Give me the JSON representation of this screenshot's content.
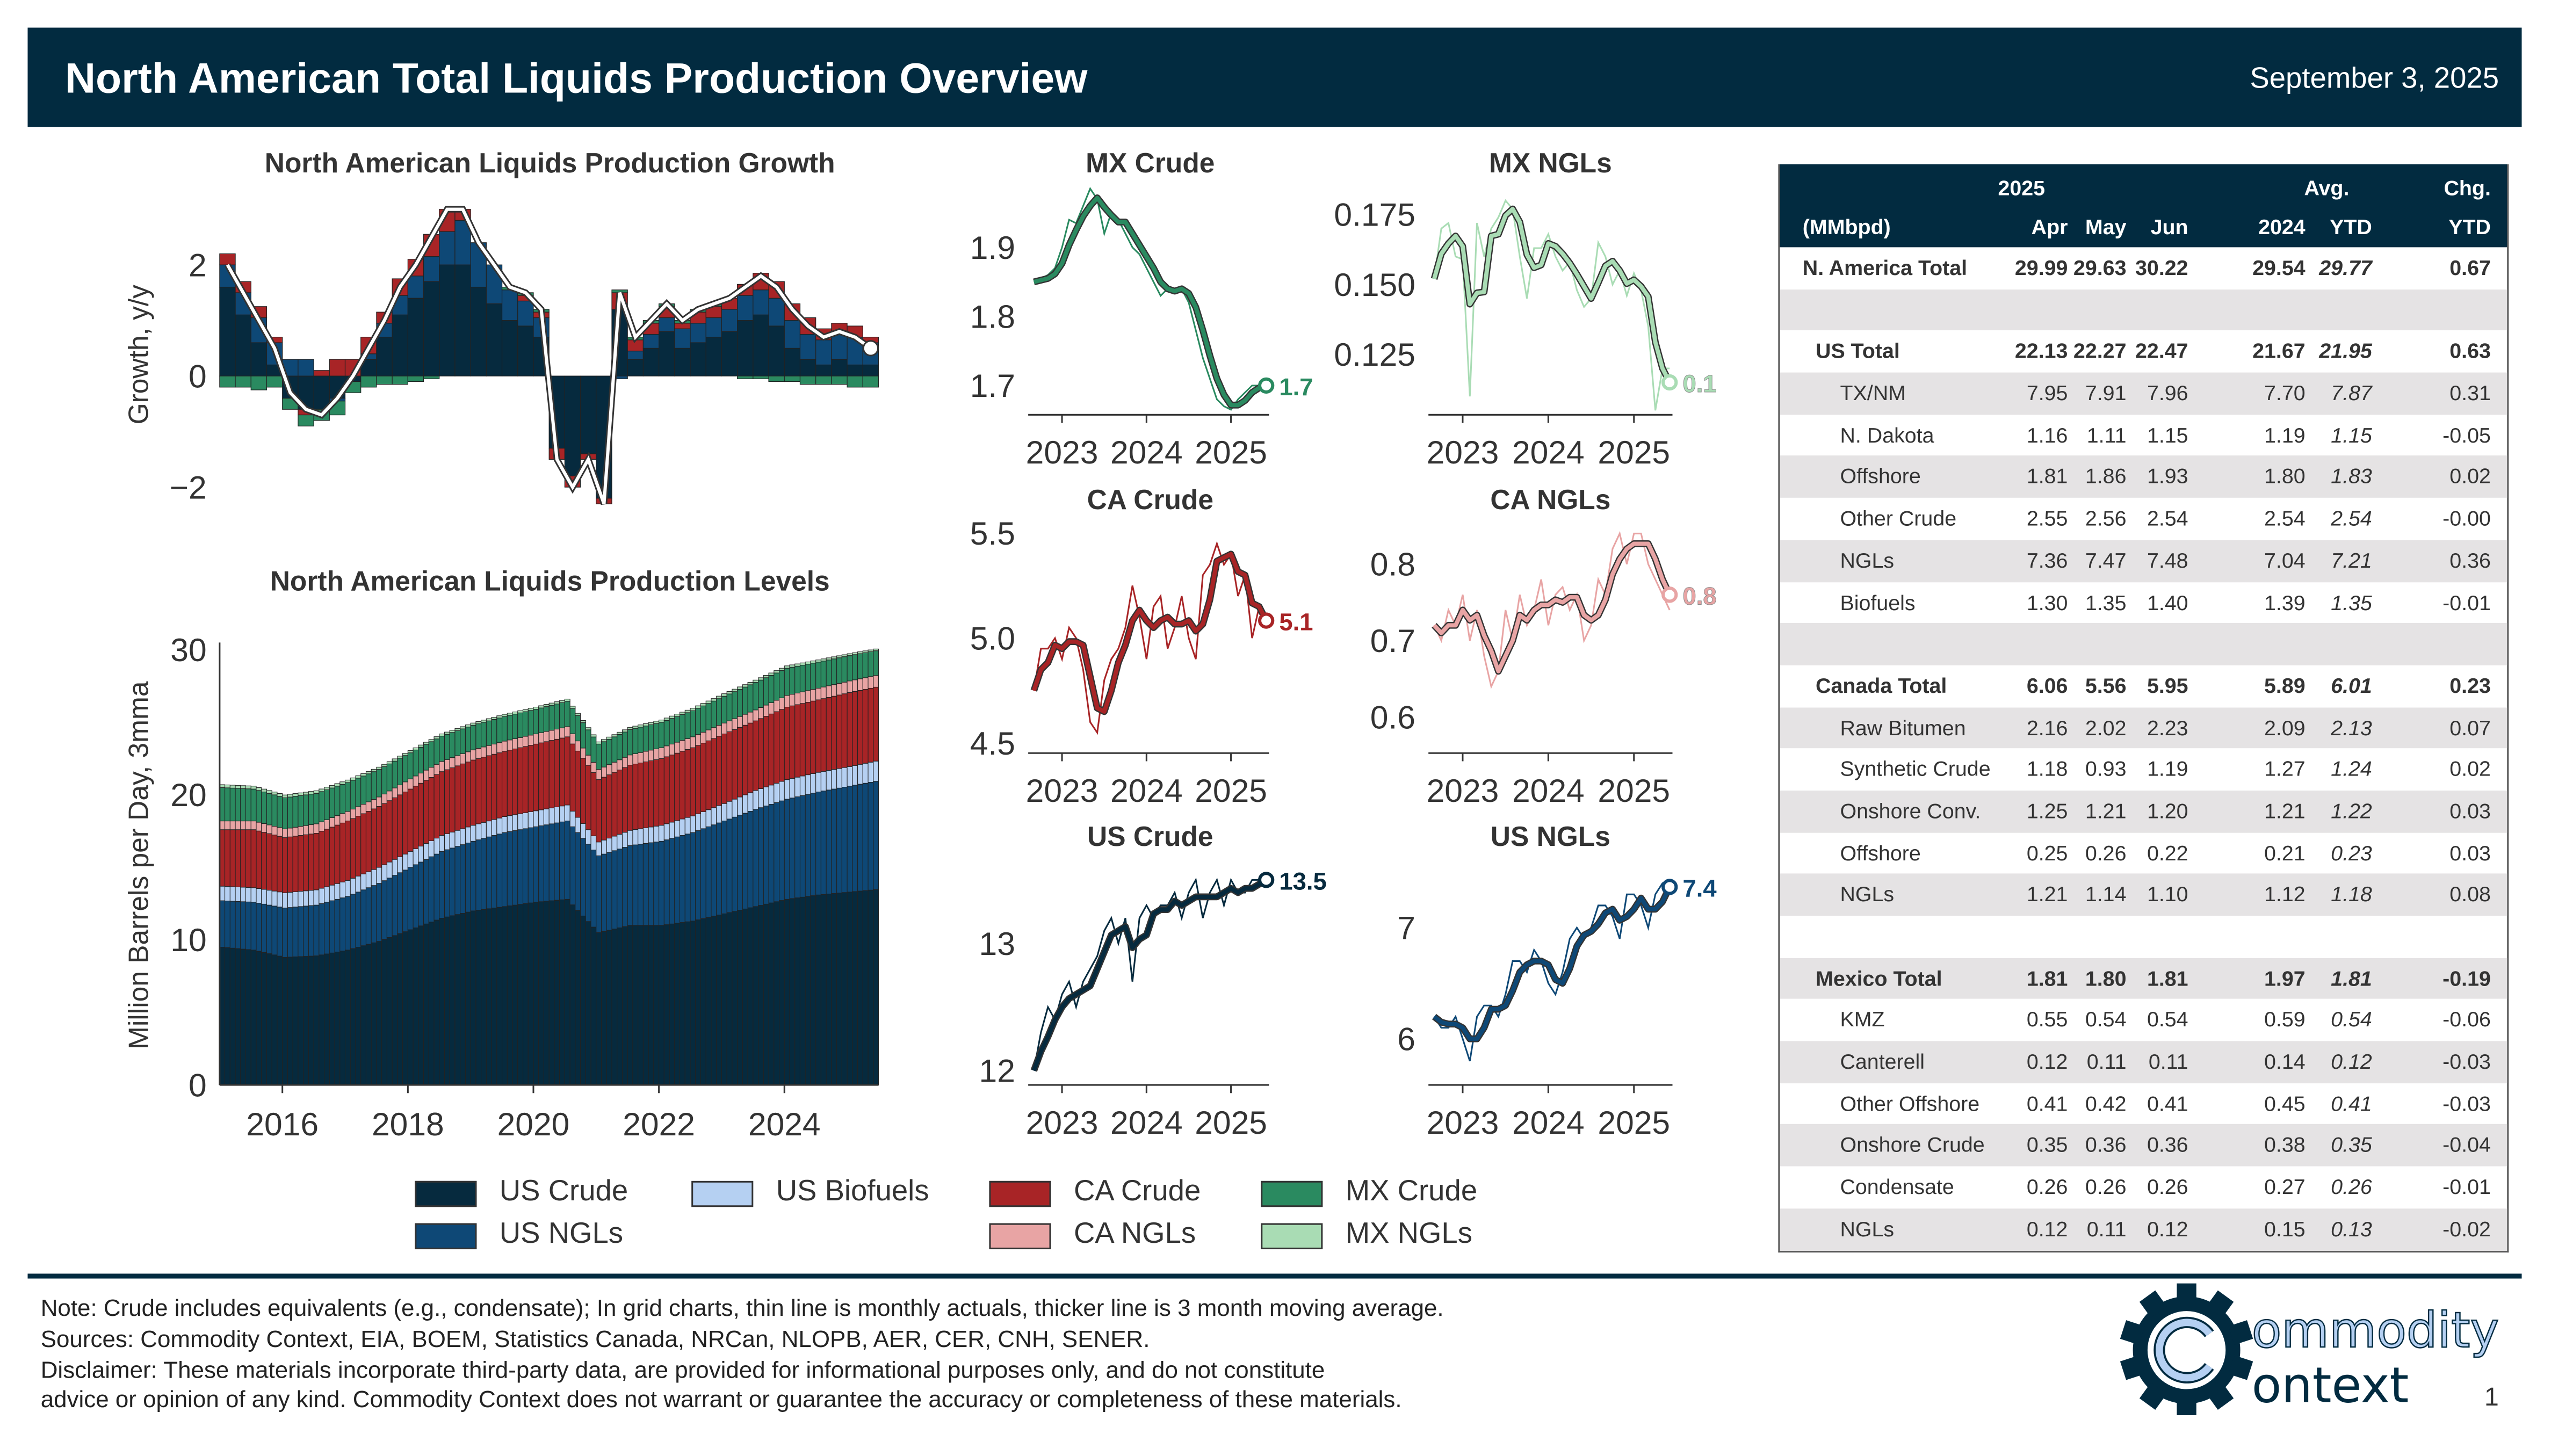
{
  "header": {
    "title": "North American Total Liquids Production Overview",
    "date": "September 3, 2025"
  },
  "colors": {
    "navy": "#022b40",
    "us_crude": "#062a3e",
    "us_ngls": "#0e4876",
    "us_biofuels": "#b5d0f2",
    "ca_crude": "#a82426",
    "ca_ngls": "#e8a4a4",
    "mx_crude": "#2a8a60",
    "mx_ngls": "#a9dcb4"
  },
  "chart_data": [
    {
      "id": "growth",
      "type": "bar",
      "title": "North American Liquids Production Growth",
      "ylabel": "Growth, y/y",
      "xlabel": "",
      "ylim": [
        -2.6,
        3.4
      ],
      "yticks": [
        -2,
        0,
        2
      ],
      "xlim": [
        2015,
        2025.5
      ],
      "x_start": 2015,
      "x_step": 0.25,
      "total": [
        2.0,
        1.5,
        1.0,
        0.5,
        -0.3,
        -0.6,
        -0.7,
        -0.4,
        0.0,
        0.5,
        1.0,
        1.6,
        2.0,
        2.5,
        3.0,
        3.0,
        2.4,
        2.0,
        1.6,
        1.5,
        1.2,
        -1.5,
        -2.0,
        -1.5,
        -2.3,
        1.5,
        0.7,
        1.0,
        1.3,
        1.0,
        1.2,
        1.3,
        1.4,
        1.6,
        1.8,
        1.6,
        1.2,
        0.9,
        0.7,
        0.8,
        0.7,
        0.5
      ],
      "us_crude": [
        1.6,
        1.1,
        0.6,
        0.2,
        -0.4,
        -0.6,
        -0.6,
        -0.4,
        -0.1,
        0.3,
        0.7,
        1.1,
        1.4,
        1.7,
        2.0,
        2.0,
        1.6,
        1.3,
        1.0,
        0.9,
        0.7,
        -1.3,
        -1.8,
        -1.4,
        -2.2,
        1.2,
        0.3,
        0.5,
        0.8,
        0.5,
        0.6,
        0.7,
        0.8,
        1.0,
        1.1,
        0.9,
        0.5,
        0.3,
        0.2,
        0.3,
        0.2,
        0.2
      ],
      "ca": [
        0.2,
        0.2,
        0.2,
        0.1,
        0,
        -0.1,
        0.1,
        0.3,
        0.3,
        0.3,
        0.2,
        0.3,
        0.3,
        0.4,
        0.4,
        0.2,
        0,
        0,
        0,
        0.1,
        0.1,
        -0.2,
        -0.2,
        -0.1,
        -0.1,
        0.3,
        0.2,
        0.2,
        0.2,
        0.1,
        0.2,
        0.2,
        0.2,
        0.2,
        0.3,
        0.3,
        0.3,
        0.3,
        0.2,
        0.2,
        0.2,
        0.1
      ],
      "mx": [
        -0.2,
        -0.2,
        -0.25,
        -0.2,
        -0.2,
        -0.2,
        -0.2,
        -0.25,
        -0.2,
        -0.2,
        -0.15,
        -0.15,
        -0.1,
        -0.05,
        0,
        0,
        0,
        0,
        0.05,
        0.05,
        0.05,
        0,
        0,
        0,
        0,
        0.05,
        0.05,
        0.05,
        0.05,
        0.05,
        0.05,
        0.05,
        0,
        -0.05,
        -0.05,
        -0.1,
        -0.1,
        -0.15,
        -0.15,
        -0.15,
        -0.2,
        -0.2
      ]
    },
    {
      "id": "levels",
      "type": "area",
      "title": "North American Liquids Production Levels",
      "ylabel": "Million Barrels per Day, 3mma",
      "xlabel": "",
      "ylim": [
        0,
        30.5
      ],
      "yticks": [
        0,
        10,
        20,
        30
      ],
      "xlim": [
        2015,
        2025.5
      ],
      "xticks": [
        2016,
        2018,
        2020,
        2022,
        2024
      ],
      "x_start": 2015,
      "x_step": 0.5,
      "series": [
        {
          "name": "US Crude",
          "key": "us_crude",
          "values": [
            9.5,
            9.3,
            8.8,
            8.9,
            9.3,
            9.9,
            10.7,
            11.5,
            12.0,
            12.3,
            12.6,
            12.8,
            10.5,
            11.0,
            11.0,
            11.3,
            11.8,
            12.3,
            12.8,
            13.1,
            13.3,
            13.5
          ]
        },
        {
          "name": "US NGLs",
          "key": "us_ngls",
          "values": [
            3.2,
            3.3,
            3.4,
            3.5,
            3.7,
            4.0,
            4.3,
            4.6,
            4.8,
            5.1,
            5.2,
            5.4,
            5.3,
            5.5,
            5.8,
            6.1,
            6.4,
            6.7,
            6.9,
            7.1,
            7.3,
            7.5
          ]
        },
        {
          "name": "US Biofuels",
          "key": "us_biofuels",
          "values": [
            1.0,
            1.0,
            1.05,
            1.05,
            1.1,
            1.1,
            1.1,
            1.1,
            1.1,
            1.1,
            1.1,
            1.1,
            0.95,
            1.05,
            1.1,
            1.15,
            1.2,
            1.3,
            1.35,
            1.35,
            1.35,
            1.4
          ]
        },
        {
          "name": "CA Crude",
          "key": "ca_crude",
          "values": [
            3.9,
            4.0,
            3.8,
            3.9,
            4.1,
            4.2,
            4.3,
            4.4,
            4.5,
            4.5,
            4.6,
            4.7,
            4.3,
            4.5,
            4.6,
            4.7,
            4.8,
            4.8,
            5.0,
            5.0,
            5.1,
            5.1
          ]
        },
        {
          "name": "CA NGLs",
          "key": "ca_ngls",
          "values": [
            0.6,
            0.6,
            0.6,
            0.65,
            0.65,
            0.65,
            0.7,
            0.7,
            0.7,
            0.7,
            0.7,
            0.7,
            0.7,
            0.7,
            0.75,
            0.75,
            0.75,
            0.75,
            0.8,
            0.8,
            0.8,
            0.8
          ]
        },
        {
          "name": "MX Crude",
          "key": "mx_crude",
          "values": [
            2.3,
            2.2,
            2.15,
            2.1,
            2.0,
            1.9,
            1.8,
            1.75,
            1.7,
            1.7,
            1.7,
            1.75,
            1.75,
            1.75,
            1.75,
            1.8,
            1.85,
            1.9,
            1.88,
            1.8,
            1.75,
            1.7
          ]
        },
        {
          "name": "MX NGLs",
          "key": "mx_ngls",
          "values": [
            0.2,
            0.2,
            0.19,
            0.18,
            0.17,
            0.16,
            0.15,
            0.15,
            0.15,
            0.15,
            0.15,
            0.15,
            0.15,
            0.15,
            0.16,
            0.17,
            0.17,
            0.16,
            0.16,
            0.15,
            0.13,
            0.12
          ]
        }
      ]
    },
    {
      "id": "mx_crude",
      "type": "line",
      "title": "MX Crude",
      "color_key": "mx_crude",
      "ylim": [
        1.66,
        1.992
      ],
      "yticks": [
        "1.7",
        "1.8",
        "1.9"
      ],
      "xlim": [
        2022.6,
        2025.45
      ],
      "xticks": [
        2023,
        2024,
        2025
      ],
      "x_start": 2022.667,
      "x_step": 0.08333,
      "end_label": "1.7",
      "values": [
        1.85,
        1.855,
        1.86,
        1.87,
        1.9,
        1.94,
        1.935,
        1.96,
        1.985,
        1.97,
        1.92,
        1.95,
        1.94,
        1.92,
        1.9,
        1.89,
        1.87,
        1.85,
        1.83,
        1.84,
        1.84,
        1.84,
        1.82,
        1.78,
        1.74,
        1.71,
        1.68,
        1.67,
        1.665,
        1.68,
        1.69,
        1.7,
        1.7,
        1.7
      ]
    },
    {
      "id": "mx_ngls",
      "type": "line",
      "title": "MX NGLs",
      "color_key": "mx_ngls",
      "ylim": [
        0.104,
        0.186
      ],
      "yticks": [
        "0.125",
        "0.150",
        "0.175"
      ],
      "xlim": [
        2022.6,
        2025.45
      ],
      "xticks": [
        2023,
        2024,
        2025
      ],
      "x_start": 2022.667,
      "x_step": 0.08333,
      "end_label": "0.1",
      "values": [
        0.152,
        0.17,
        0.172,
        0.16,
        0.159,
        0.11,
        0.172,
        0.16,
        0.17,
        0.174,
        0.18,
        0.177,
        0.16,
        0.145,
        0.163,
        0.163,
        0.168,
        0.16,
        0.155,
        0.158,
        0.148,
        0.142,
        0.145,
        0.165,
        0.16,
        0.15,
        0.155,
        0.146,
        0.154,
        0.148,
        0.135,
        0.105,
        0.12,
        0.12
      ]
    },
    {
      "id": "ca_crude",
      "type": "line",
      "title": "CA Crude",
      "color_key": "ca_crude",
      "ylim": [
        4.46,
        5.56
      ],
      "yticks": [
        "4.5",
        "5.0",
        "5.5"
      ],
      "xlim": [
        2022.6,
        2025.45
      ],
      "xticks": [
        2023,
        2024,
        2025
      ],
      "x_start": 2022.667,
      "x_step": 0.08333,
      "end_label": "5.1",
      "values": [
        4.75,
        4.95,
        4.95,
        5.0,
        4.9,
        5.05,
        5.0,
        4.85,
        4.6,
        4.55,
        4.8,
        4.9,
        4.95,
        5.05,
        5.25,
        5.1,
        4.9,
        5.15,
        5.2,
        4.95,
        5.05,
        5.2,
        5.0,
        4.9,
        5.3,
        5.35,
        5.45,
        5.35,
        5.4,
        5.2,
        5.3,
        5.0,
        5.15,
        5.1
      ]
    },
    {
      "id": "ca_ngls",
      "type": "line",
      "title": "CA NGLs",
      "color_key": "ca_ngls",
      "ylim": [
        0.555,
        0.857
      ],
      "yticks": [
        "0.6",
        "0.7",
        "0.8"
      ],
      "xlim": [
        2022.6,
        2025.45
      ],
      "xticks": [
        2023,
        2024,
        2025
      ],
      "x_start": 2022.667,
      "x_step": 0.08333,
      "end_label": "0.8",
      "values": [
        0.72,
        0.7,
        0.74,
        0.72,
        0.76,
        0.7,
        0.74,
        0.68,
        0.64,
        0.66,
        0.74,
        0.7,
        0.76,
        0.72,
        0.74,
        0.78,
        0.72,
        0.76,
        0.77,
        0.74,
        0.76,
        0.7,
        0.72,
        0.78,
        0.76,
        0.82,
        0.84,
        0.8,
        0.84,
        0.84,
        0.8,
        0.78,
        0.76,
        0.74
      ]
    },
    {
      "id": "us_crude",
      "type": "line",
      "title": "US Crude",
      "color_key": "us_crude",
      "ylim": [
        11.9,
        13.64
      ],
      "yticks": [
        "12",
        "13"
      ],
      "xlim": [
        2022.6,
        2025.45
      ],
      "xticks": [
        2023,
        2024,
        2025
      ],
      "x_start": 2022.667,
      "x_step": 0.08333,
      "end_label": "13.5",
      "values": [
        12.0,
        12.3,
        12.5,
        12.4,
        12.6,
        12.7,
        12.5,
        12.7,
        12.8,
        12.9,
        13.1,
        13.2,
        13.0,
        13.2,
        12.7,
        13.2,
        13.3,
        13.2,
        13.3,
        13.3,
        13.4,
        13.2,
        13.4,
        13.5,
        13.2,
        13.4,
        13.5,
        13.3,
        13.5,
        13.4,
        13.4,
        13.5,
        13.5,
        13.5
      ]
    },
    {
      "id": "us_ngls",
      "type": "line",
      "title": "US NGLs",
      "color_key": "us_ngls",
      "ylim": [
        5.6,
        7.59
      ],
      "yticks": [
        "6",
        "7"
      ],
      "xlim": [
        2022.6,
        2025.45
      ],
      "xticks": [
        2023,
        2024,
        2025
      ],
      "x_start": 2022.667,
      "x_step": 0.08333,
      "end_label": "7.4",
      "values": [
        6.2,
        6.1,
        6.1,
        6.2,
        6.0,
        5.8,
        6.2,
        6.3,
        6.3,
        6.2,
        6.4,
        6.7,
        6.7,
        6.6,
        6.8,
        6.7,
        6.5,
        6.4,
        6.6,
        6.9,
        7.0,
        6.9,
        7.0,
        7.2,
        7.2,
        7.1,
        6.9,
        7.3,
        7.3,
        7.2,
        7.0,
        7.3,
        7.4,
        7.4
      ]
    }
  ],
  "legend": [
    {
      "label": "US Crude",
      "key": "us_crude"
    },
    {
      "label": "US NGLs",
      "key": "us_ngls"
    },
    {
      "label": "US Biofuels",
      "key": "us_biofuels"
    },
    {
      "label": "CA Crude",
      "key": "ca_crude"
    },
    {
      "label": "CA NGLs",
      "key": "ca_ngls"
    },
    {
      "label": "MX Crude",
      "key": "mx_crude"
    },
    {
      "label": "MX NGLs",
      "key": "mx_ngls"
    }
  ],
  "table": {
    "group_headers": {
      "y2025": "2025",
      "avg": "Avg.",
      "chg": "Chg."
    },
    "columns": [
      "(MMbpd)",
      "Apr",
      "May",
      "Jun",
      "2024",
      "YTD",
      "YTD"
    ],
    "rows": [
      {
        "type": "total",
        "level": 0,
        "label": "N. America Total",
        "values": [
          "29.99",
          "29.63",
          "30.22",
          "29.54",
          "29.77",
          "0.67"
        ]
      },
      {
        "type": "blank"
      },
      {
        "type": "total",
        "level": 1,
        "label": "US Total",
        "values": [
          "22.13",
          "22.27",
          "22.47",
          "21.67",
          "21.95",
          "0.63"
        ]
      },
      {
        "type": "sub",
        "label": "TX/NM",
        "values": [
          "7.95",
          "7.91",
          "7.96",
          "7.70",
          "7.87",
          "0.31"
        ]
      },
      {
        "type": "sub",
        "label": "N. Dakota",
        "values": [
          "1.16",
          "1.11",
          "1.15",
          "1.19",
          "1.15",
          "-0.05"
        ]
      },
      {
        "type": "sub",
        "label": "Offshore",
        "values": [
          "1.81",
          "1.86",
          "1.93",
          "1.80",
          "1.83",
          "0.02"
        ]
      },
      {
        "type": "sub",
        "label": "Other Crude",
        "values": [
          "2.55",
          "2.56",
          "2.54",
          "2.54",
          "2.54",
          "-0.00"
        ]
      },
      {
        "type": "sub",
        "label": "NGLs",
        "values": [
          "7.36",
          "7.47",
          "7.48",
          "7.04",
          "7.21",
          "0.36"
        ]
      },
      {
        "type": "sub",
        "label": "Biofuels",
        "values": [
          "1.30",
          "1.35",
          "1.40",
          "1.39",
          "1.35",
          "-0.01"
        ]
      },
      {
        "type": "blank"
      },
      {
        "type": "total",
        "level": 1,
        "label": "Canada Total",
        "values": [
          "6.06",
          "5.56",
          "5.95",
          "5.89",
          "6.01",
          "0.23"
        ]
      },
      {
        "type": "sub",
        "label": "Raw Bitumen",
        "values": [
          "2.16",
          "2.02",
          "2.23",
          "2.09",
          "2.13",
          "0.07"
        ]
      },
      {
        "type": "sub",
        "label": "Synthetic Crude",
        "values": [
          "1.18",
          "0.93",
          "1.19",
          "1.27",
          "1.24",
          "0.02"
        ]
      },
      {
        "type": "sub",
        "label": "Onshore Conv.",
        "values": [
          "1.25",
          "1.21",
          "1.20",
          "1.21",
          "1.22",
          "0.03"
        ]
      },
      {
        "type": "sub",
        "label": "Offshore",
        "values": [
          "0.25",
          "0.26",
          "0.22",
          "0.21",
          "0.23",
          "0.03"
        ]
      },
      {
        "type": "sub",
        "label": "NGLs",
        "values": [
          "1.21",
          "1.14",
          "1.10",
          "1.12",
          "1.18",
          "0.08"
        ]
      },
      {
        "type": "blank"
      },
      {
        "type": "total",
        "level": 1,
        "label": "Mexico Total",
        "values": [
          "1.81",
          "1.80",
          "1.81",
          "1.97",
          "1.81",
          "-0.19"
        ]
      },
      {
        "type": "sub",
        "label": "KMZ",
        "values": [
          "0.55",
          "0.54",
          "0.54",
          "0.59",
          "0.54",
          "-0.06"
        ]
      },
      {
        "type": "sub",
        "label": "Canterell",
        "values": [
          "0.12",
          "0.11",
          "0.11",
          "0.14",
          "0.12",
          "-0.03"
        ]
      },
      {
        "type": "sub",
        "label": "Other Offshore",
        "values": [
          "0.41",
          "0.42",
          "0.41",
          "0.45",
          "0.41",
          "-0.03"
        ]
      },
      {
        "type": "sub",
        "label": "Onshore Crude",
        "values": [
          "0.35",
          "0.36",
          "0.36",
          "0.38",
          "0.35",
          "-0.04"
        ]
      },
      {
        "type": "sub",
        "label": "Condensate",
        "values": [
          "0.26",
          "0.26",
          "0.26",
          "0.27",
          "0.26",
          "-0.01"
        ]
      },
      {
        "type": "sub",
        "label": "NGLs",
        "values": [
          "0.12",
          "0.11",
          "0.12",
          "0.15",
          "0.13",
          "-0.02"
        ]
      }
    ]
  },
  "footer": {
    "lines": [
      "Note: Crude includes equivalents (e.g., condensate); In grid charts, thin line is monthly actuals, thicker line is 3 month moving average.",
      "Sources: Commodity Context, EIA, BOEM, Statistics Canada, NRCan, NLOPB, AER, CER, CNH, SENER.",
      "Disclaimer: These materials incorporate third-party data, are provided for informational purposes only, and do not constitute",
      "advice or opinion of any kind. Commodity Context does not warrant or guarantee the accuracy or completeness of these materials."
    ],
    "logo_text": [
      "ommodity",
      "ontext"
    ],
    "page_number": "1"
  }
}
